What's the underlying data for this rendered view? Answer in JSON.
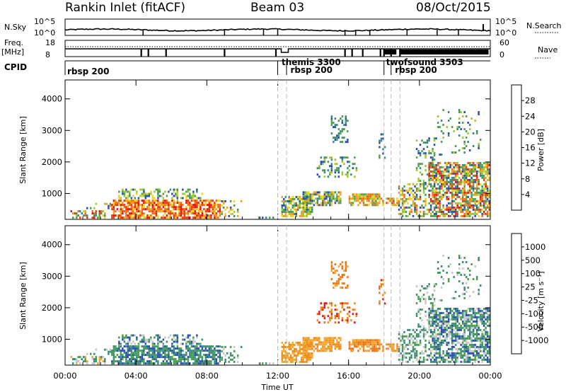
{
  "header": {
    "station": "Rankin Inlet (fitACF)",
    "beam": "Beam 03",
    "date": "08/Oct/2015"
  },
  "labels": {
    "nsky": "N.Sky",
    "nsky_ticks": [
      "10^5",
      "10^0"
    ],
    "nsearch": "N.Search",
    "freq_top": "Freq.",
    "freq_unit": "[MHz]",
    "freq_ticks": [
      "18",
      "8"
    ],
    "nave": "Nave",
    "nave_ticks": [
      "60",
      "0"
    ],
    "cpid": "CPID"
  },
  "cpid_labels": [
    {
      "text": "rbsp 200",
      "x": 0.0
    },
    {
      "text": "themis 3300",
      "x": 12.1
    },
    {
      "text": "rbsp 200",
      "x": 12.6
    },
    {
      "text": "twofsound 3503",
      "x": 18.0
    },
    {
      "text": "rbsp 200",
      "x": 18.5
    }
  ],
  "cpid_changes": [
    12.0,
    12.5,
    18.0,
    18.4,
    18.9
  ],
  "chart_data": [
    {
      "type": "heatmap",
      "name": "power",
      "ylabel": "Slant Range [km]",
      "ylim": [
        180,
        4600
      ],
      "yticks": [
        1000,
        2000,
        3000,
        4000
      ],
      "xlim": [
        0,
        24
      ],
      "colorbar_label": "Power [dB]",
      "colorbar_ticks": [
        "4",
        "8",
        "12",
        "16",
        "20",
        "24",
        "28"
      ]
    },
    {
      "type": "heatmap",
      "name": "velocity",
      "ylabel": "Slant Range [km]",
      "xlabel": "Time UT",
      "ylim": [
        180,
        4600
      ],
      "yticks": [
        1000,
        2000,
        3000,
        4000
      ],
      "xlim": [
        0,
        24
      ],
      "xticks": [
        "00:00",
        "04:00",
        "08:00",
        "12:00",
        "16:00",
        "20:00",
        "00:00"
      ],
      "colorbar_label": "Velocity [m s⁻¹]",
      "colorbar_ticks": [
        "-1000",
        "-500",
        "-100",
        "-25",
        "25",
        "100",
        "500",
        "1000"
      ]
    }
  ],
  "colors": {
    "power": [
      "#1414e6",
      "#2850b4",
      "#3c8c78",
      "#50a050",
      "#a0c832",
      "#f0d21e",
      "#f0a01e",
      "#f06e14",
      "#ee3c0a",
      "#e61414"
    ],
    "velocity": [
      "#e61414",
      "#f06e14",
      "#f08c1e",
      "#f0aa32",
      "#c8c8c8",
      "#46a050",
      "#3c8c78",
      "#2850b4",
      "#1414e6"
    ]
  }
}
